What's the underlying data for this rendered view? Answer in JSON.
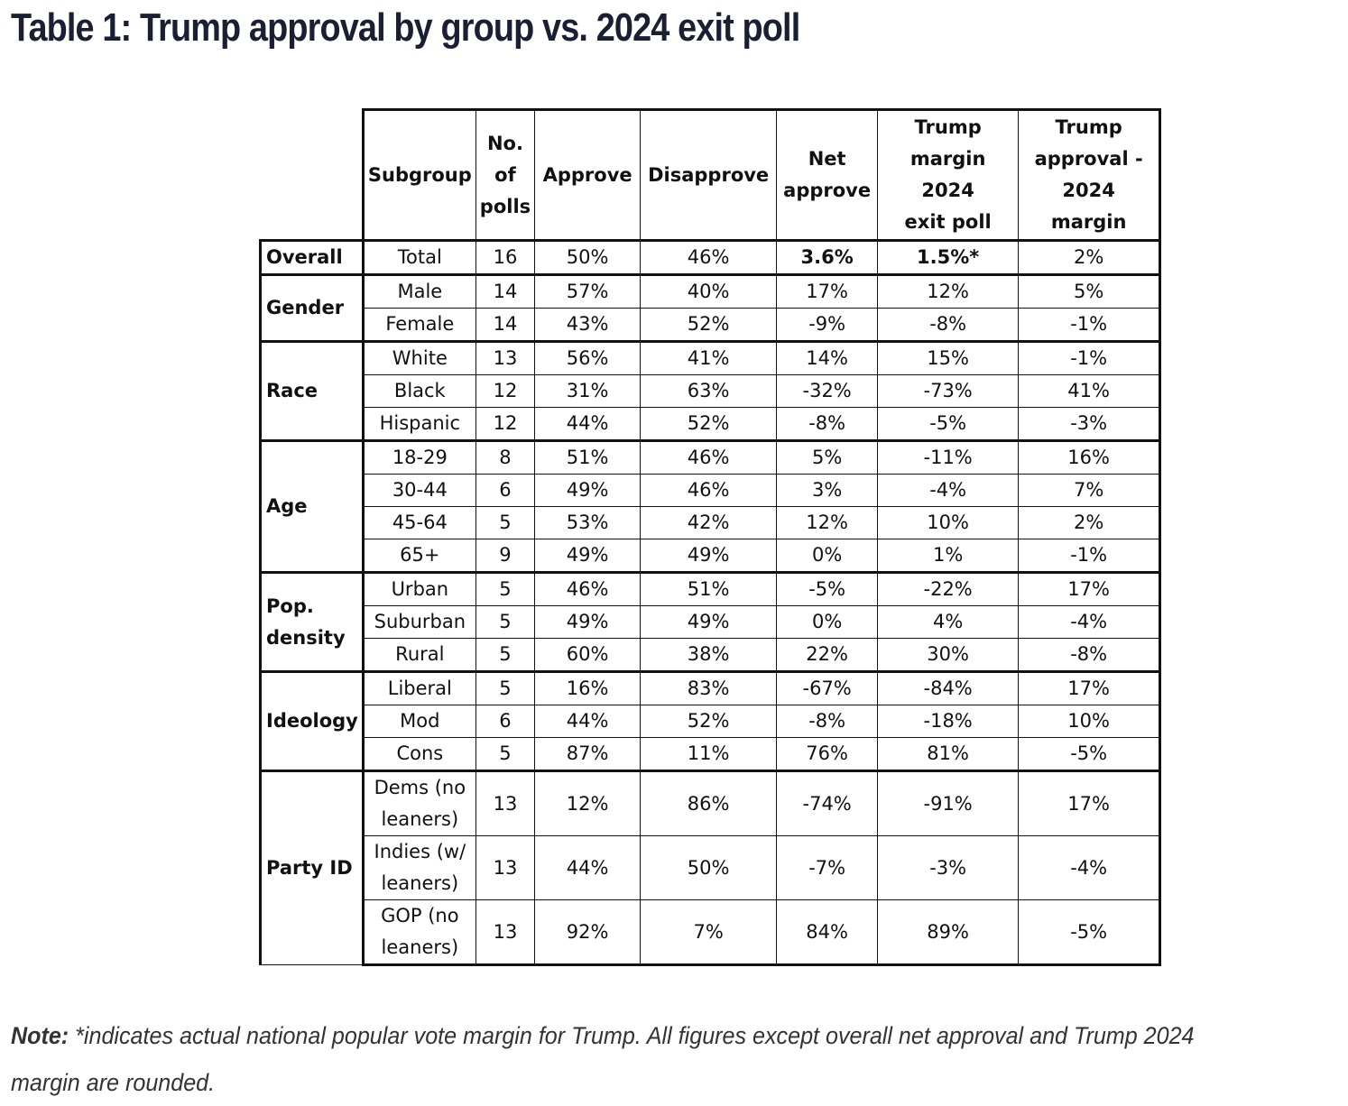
{
  "title": "Table 1: Trump approval by group vs. 2024 exit poll",
  "headers": {
    "subgroup": "Subgroup",
    "polls_1": "No.",
    "polls_2": "of",
    "polls_3": "polls",
    "approve": "Approve",
    "disapprove": "Disapprove",
    "net_1": "Net",
    "net_2": "approve",
    "margin_1": "Trump",
    "margin_2": "margin 2024",
    "margin_3": "exit poll",
    "diff_1": "Trump",
    "diff_2": "approval -",
    "diff_3": "2024 margin"
  },
  "rows": [
    {
      "group": "Overall",
      "subgroup": "Total",
      "polls": "16",
      "approve": "50%",
      "disapprove": "46%",
      "net": "3.6%",
      "margin": "1.5%*",
      "diff": "2%"
    },
    {
      "group": "Gender",
      "subgroup": "Male",
      "polls": "14",
      "approve": "57%",
      "disapprove": "40%",
      "net": "17%",
      "margin": "12%",
      "diff": "5%"
    },
    {
      "subgroup": "Female",
      "polls": "14",
      "approve": "43%",
      "disapprove": "52%",
      "net": "-9%",
      "margin": "-8%",
      "diff": "-1%"
    },
    {
      "group": "Race",
      "subgroup": "White",
      "polls": "13",
      "approve": "56%",
      "disapprove": "41%",
      "net": "14%",
      "margin": "15%",
      "diff": "-1%"
    },
    {
      "subgroup": "Black",
      "polls": "12",
      "approve": "31%",
      "disapprove": "63%",
      "net": "-32%",
      "margin": "-73%",
      "diff": "41%"
    },
    {
      "subgroup": "Hispanic",
      "polls": "12",
      "approve": "44%",
      "disapprove": "52%",
      "net": "-8%",
      "margin": "-5%",
      "diff": "-3%"
    },
    {
      "group": "Age",
      "subgroup": "18-29",
      "polls": "8",
      "approve": "51%",
      "disapprove": "46%",
      "net": "5%",
      "margin": "-11%",
      "diff": "16%"
    },
    {
      "subgroup": "30-44",
      "polls": "6",
      "approve": "49%",
      "disapprove": "46%",
      "net": "3%",
      "margin": "-4%",
      "diff": "7%"
    },
    {
      "subgroup": "45-64",
      "polls": "5",
      "approve": "53%",
      "disapprove": "42%",
      "net": "12%",
      "margin": "10%",
      "diff": "2%"
    },
    {
      "subgroup": "65+",
      "polls": "9",
      "approve": "49%",
      "disapprove": "49%",
      "net": "0%",
      "margin": "1%",
      "diff": "-1%"
    },
    {
      "group_1": "Pop.",
      "group_2": "density",
      "subgroup": "Urban",
      "polls": "5",
      "approve": "46%",
      "disapprove": "51%",
      "net": "-5%",
      "margin": "-22%",
      "diff": "17%"
    },
    {
      "subgroup": "Suburban",
      "polls": "5",
      "approve": "49%",
      "disapprove": "49%",
      "net": "0%",
      "margin": "4%",
      "diff": "-4%"
    },
    {
      "subgroup": "Rural",
      "polls": "5",
      "approve": "60%",
      "disapprove": "38%",
      "net": "22%",
      "margin": "30%",
      "diff": "-8%"
    },
    {
      "group": "Ideology",
      "subgroup": "Liberal",
      "polls": "5",
      "approve": "16%",
      "disapprove": "83%",
      "net": "-67%",
      "margin": "-84%",
      "diff": "17%"
    },
    {
      "subgroup": "Mod",
      "polls": "6",
      "approve": "44%",
      "disapprove": "52%",
      "net": "-8%",
      "margin": "-18%",
      "diff": "10%"
    },
    {
      "subgroup": "Cons",
      "polls": "5",
      "approve": "87%",
      "disapprove": "11%",
      "net": "76%",
      "margin": "81%",
      "diff": "-5%"
    },
    {
      "group": "Party ID",
      "subgroup_1": "Dems (no",
      "subgroup_2": "leaners)",
      "polls": "13",
      "approve": "12%",
      "disapprove": "86%",
      "net": "-74%",
      "margin": "-91%",
      "diff": "17%"
    },
    {
      "subgroup_1": "Indies (w/",
      "subgroup_2": "leaners)",
      "polls": "13",
      "approve": "44%",
      "disapprove": "50%",
      "net": "-7%",
      "margin": "-3%",
      "diff": "-4%"
    },
    {
      "subgroup_1": "GOP (no",
      "subgroup_2": "leaners)",
      "polls": "13",
      "approve": "92%",
      "disapprove": "7%",
      "net": "84%",
      "margin": "89%",
      "diff": "-5%"
    }
  ],
  "note": {
    "label": "Note:",
    "text": " *indicates actual national popular vote margin for Trump. All figures except overall net approval and Trump 2024 margin are rounded."
  }
}
